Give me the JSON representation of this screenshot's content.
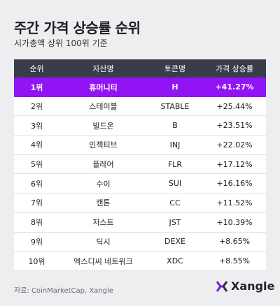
{
  "header": {
    "title": "주간 가격 상승률 순위",
    "subtitle": "시가총액 상위 100위 기준"
  },
  "table": {
    "columns": [
      "순위",
      "자산명",
      "토큰명",
      "가격 상승률"
    ],
    "rows": [
      [
        "1위",
        "휴머니티",
        "H",
        "+41.27%"
      ],
      [
        "2위",
        "스테이블",
        "STABLE",
        "+25.44%"
      ],
      [
        "3위",
        "빌드온",
        "B",
        "+23.51%"
      ],
      [
        "4위",
        "인젝티브",
        "INJ",
        "+22.02%"
      ],
      [
        "5위",
        "플레어",
        "FLR",
        "+17.12%"
      ],
      [
        "6위",
        "수이",
        "SUI",
        "+16.16%"
      ],
      [
        "7위",
        "캔톤",
        "CC",
        "+11.52%"
      ],
      [
        "8위",
        "저스트",
        "JST",
        "+10.39%"
      ],
      [
        "9위",
        "딕시",
        "DEXE",
        "+8.65%"
      ],
      [
        "10위",
        "엑스디씨 네트워크",
        "XDC",
        "+8.55%"
      ]
    ]
  },
  "footer": {
    "source": "자료: CoinMarketCap, Xangle",
    "brand": "Xangle"
  }
}
